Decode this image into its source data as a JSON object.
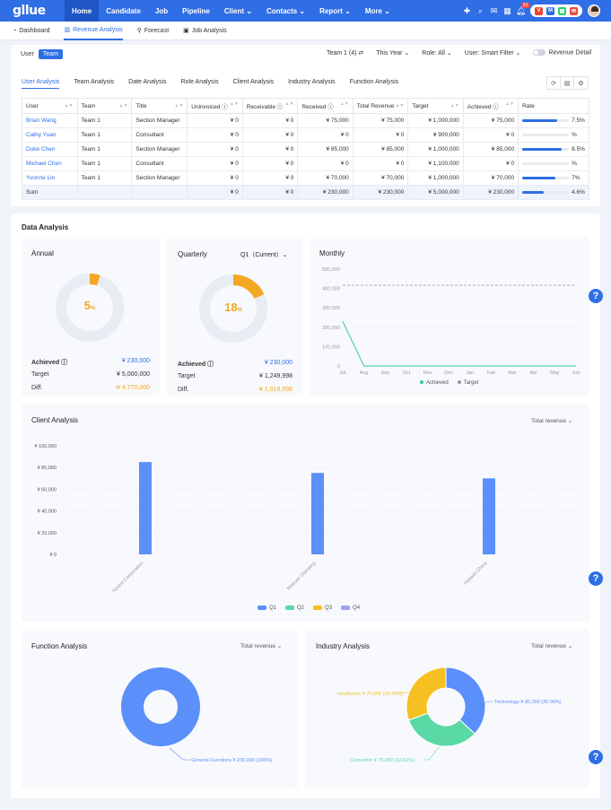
{
  "nav": {
    "logo": "gllue",
    "items": [
      "Home",
      "Candidate",
      "Job",
      "Pipeline",
      "Client ⌄",
      "Contacts ⌄",
      "Report ⌄",
      "More ⌄"
    ],
    "badge": "52"
  },
  "subnav": [
    "Dashboard",
    "Revenue Analysis",
    "Forecast",
    "Job Analysis"
  ],
  "toggle": {
    "user": "User",
    "team": "Team"
  },
  "filters": {
    "team": "Team 1 (4) ⇄",
    "period": "This Year ⌄",
    "role": "Role: All ⌄",
    "user": "User: Smart Filter ⌄",
    "detail": "Revenue Detail"
  },
  "tabs": [
    "User Analysis",
    "Team Analysis",
    "Date Analysis",
    "Role Analysis",
    "Client Analysis",
    "Industry Analysis",
    "Function Analysis"
  ],
  "table": {
    "headers": [
      "User",
      "Team",
      "Title",
      "Uninvoiced ⓘ",
      "Receivable ⓘ",
      "Received ⓘ",
      "Total Revenue",
      "Target",
      "Achieved ⓘ",
      "Rate"
    ],
    "rows": [
      [
        "Brian Wang",
        "Team 1",
        "Section Manager",
        "¥ 0",
        "¥ 0",
        "¥ 75,000",
        "¥ 75,000",
        "¥ 1,000,000",
        "¥ 75,000",
        "7.5%"
      ],
      [
        "Cathy Yuan",
        "Team 1",
        "Consultant",
        "¥ 0",
        "¥ 0",
        "¥ 0",
        "¥ 0",
        "¥ 900,000",
        "¥ 0",
        "%"
      ],
      [
        "Duke Chen",
        "Team 1",
        "Section Manager",
        "¥ 0",
        "¥ 0",
        "¥ 85,000",
        "¥ 85,000",
        "¥ 1,000,000",
        "¥ 85,000",
        "8.5%"
      ],
      [
        "Michael Chen",
        "Team 1",
        "Consultant",
        "¥ 0",
        "¥ 0",
        "¥ 0",
        "¥ 0",
        "¥ 1,100,000",
        "¥ 0",
        "%"
      ],
      [
        "Yvonne Lin",
        "Team 1",
        "Section Manager",
        "¥ 0",
        "¥ 0",
        "¥ 70,000",
        "¥ 70,000",
        "¥ 1,000,000",
        "¥ 70,000",
        "7%"
      ]
    ],
    "rates": [
      0.075,
      0,
      0.085,
      0,
      0.07
    ],
    "sum": [
      "Sum",
      "",
      "",
      "¥ 0",
      "¥ 0",
      "¥ 230,000",
      "¥ 230,000",
      "¥ 5,000,000",
      "¥ 230,000",
      "4.6%"
    ],
    "sum_rate": 0.046
  },
  "data_analysis": {
    "title": "Data Analysis",
    "annual": {
      "title": "Annual",
      "pct": "5",
      "unit": "%",
      "fraction": 0.05,
      "achieved_label": "Achieved ⓘ",
      "achieved": "¥ 230,000",
      "target_label": "Target",
      "target": "¥ 5,000,000",
      "diff_label": "Diff.",
      "diff": "-¥ 4,770,000"
    },
    "quarterly": {
      "title": "Quarterly",
      "select": "Q1（Current）⌄",
      "pct": "18",
      "unit": "%",
      "fraction": 0.18,
      "achieved_label": "Achieved ⓘ",
      "achieved": "¥ 230,000",
      "target_label": "Target",
      "target": "¥ 1,249,998",
      "diff_label": "Diff.",
      "diff": "-¥ 1,019,998"
    },
    "monthly": {
      "title": "Monthly",
      "legend": [
        "Achieved",
        "Target"
      ]
    }
  },
  "chart_data": [
    {
      "type": "line",
      "title": "Monthly",
      "x": [
        "Jul",
        "Aug",
        "Sep",
        "Oct",
        "Nov",
        "Dec",
        "Jan",
        "Feb",
        "Mar",
        "Apr",
        "May",
        "Jun"
      ],
      "series": [
        {
          "name": "Achieved",
          "values": [
            230000,
            0,
            0,
            0,
            0,
            0,
            0,
            0,
            0,
            0,
            0,
            0
          ]
        },
        {
          "name": "Target",
          "values": [
            416667,
            416667,
            416667,
            416667,
            416667,
            416667,
            416667,
            416667,
            416667,
            416667,
            416667,
            416667
          ]
        }
      ],
      "yticks": [
        "0",
        "100,000",
        "200,000",
        "300,000",
        "400,000",
        "500,000"
      ],
      "ylim": [
        0,
        500000
      ]
    },
    {
      "type": "bar",
      "title": "Client Analysis",
      "categories": [
        "Xiaomi Corporation",
        "Meituan Dianping",
        "Huawei China"
      ],
      "series": [
        {
          "name": "Q1",
          "values": [
            85000,
            75000,
            70000
          ]
        },
        {
          "name": "Q2",
          "values": [
            0,
            0,
            0
          ]
        },
        {
          "name": "Q3",
          "values": [
            0,
            0,
            0
          ]
        },
        {
          "name": "Q4",
          "values": [
            0,
            0,
            0
          ]
        }
      ],
      "yticks": [
        "¥ 0",
        "¥ 20,000",
        "¥ 40,000",
        "¥ 60,000",
        "¥ 80,000",
        "¥ 100,000"
      ],
      "ylim": [
        0,
        100000
      ]
    },
    {
      "type": "pie",
      "title": "Function Analysis",
      "slices": [
        {
          "label": "General Functions ¥ 230,000 (100%)",
          "value": 230000
        }
      ]
    },
    {
      "type": "pie",
      "title": "Industry Analysis",
      "slices": [
        {
          "label": "Technology ¥ 85,000 (36.96%)",
          "value": 85000
        },
        {
          "label": "Consumer ¥ 75,000 (32.61%)",
          "value": 75000
        },
        {
          "label": "Healthcare ¥ 70,000 (30.43%)",
          "value": 70000
        }
      ]
    }
  ],
  "client": {
    "title": "Client Analysis",
    "dropdown": "Total revenue ⌄"
  },
  "function": {
    "title": "Function Analysis",
    "dropdown": "Total revenue ⌄"
  },
  "industry": {
    "title": "Industry Analysis",
    "dropdown": "Total revenue ⌄"
  },
  "colors": {
    "primary": "#2f6ee5",
    "bar": "#5b8ff9",
    "q2": "#5ad8a6",
    "q3": "#f6c022",
    "q4": "#9d9ff7",
    "orange": "#f5a623",
    "green": "#2ecc9a"
  }
}
